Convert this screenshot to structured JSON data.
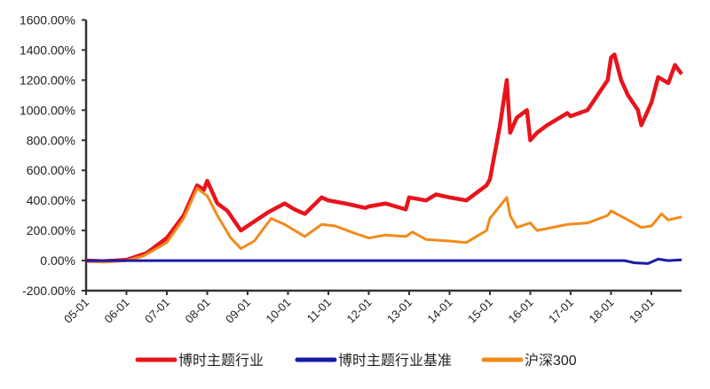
{
  "chart_data": {
    "type": "line",
    "title": "",
    "xlabel": "",
    "ylabel": "",
    "ylim": [
      -200,
      1600
    ],
    "yticks": [
      "-200.00%",
      "0.00%",
      "200.00%",
      "400.00%",
      "600.00%",
      "800.00%",
      "1000.00%",
      "1200.00%",
      "1400.00%",
      "1600.00%"
    ],
    "ytick_values": [
      -200,
      0,
      200,
      400,
      600,
      800,
      1000,
      1200,
      1400,
      1600
    ],
    "xticks": [
      "05-01",
      "06-01",
      "07-01",
      "08-01",
      "09-01",
      "10-01",
      "11-01",
      "12-01",
      "13-01",
      "14-01",
      "15-01",
      "16-01",
      "17-01",
      "18-01",
      "19-01"
    ],
    "xlim": [
      "2005-01",
      "2019-10"
    ],
    "grid": false,
    "legend": "bottom",
    "series": [
      {
        "name": "博时主题行业",
        "color": "#e8141c",
        "points": [
          [
            "2005-01",
            0
          ],
          [
            "2005-06",
            -5
          ],
          [
            "2006-01",
            5
          ],
          [
            "2006-07",
            50
          ],
          [
            "2007-01",
            150
          ],
          [
            "2007-06",
            300
          ],
          [
            "2007-10",
            500
          ],
          [
            "2007-12",
            470
          ],
          [
            "2008-01",
            530
          ],
          [
            "2008-04",
            380
          ],
          [
            "2008-07",
            330
          ],
          [
            "2008-11",
            200
          ],
          [
            "2009-01",
            230
          ],
          [
            "2009-07",
            320
          ],
          [
            "2009-12",
            380
          ],
          [
            "2010-03",
            340
          ],
          [
            "2010-06",
            310
          ],
          [
            "2010-11",
            420
          ],
          [
            "2011-01",
            400
          ],
          [
            "2011-06",
            380
          ],
          [
            "2011-12",
            350
          ],
          [
            "2012-01",
            360
          ],
          [
            "2012-06",
            380
          ],
          [
            "2012-12",
            340
          ],
          [
            "2013-01",
            420
          ],
          [
            "2013-06",
            400
          ],
          [
            "2013-09",
            440
          ],
          [
            "2014-01",
            420
          ],
          [
            "2014-06",
            400
          ],
          [
            "2014-12",
            500
          ],
          [
            "2015-01",
            540
          ],
          [
            "2015-04",
            900
          ],
          [
            "2015-06",
            1200
          ],
          [
            "2015-07",
            850
          ],
          [
            "2015-09",
            950
          ],
          [
            "2015-12",
            1000
          ],
          [
            "2016-01",
            800
          ],
          [
            "2016-03",
            850
          ],
          [
            "2016-06",
            900
          ],
          [
            "2016-12",
            980
          ],
          [
            "2017-01",
            960
          ],
          [
            "2017-06",
            1000
          ],
          [
            "2017-12",
            1200
          ],
          [
            "2018-01",
            1350
          ],
          [
            "2018-02",
            1370
          ],
          [
            "2018-04",
            1200
          ],
          [
            "2018-06",
            1100
          ],
          [
            "2018-09",
            1000
          ],
          [
            "2018-10",
            900
          ],
          [
            "2019-01",
            1050
          ],
          [
            "2019-03",
            1220
          ],
          [
            "2019-06",
            1180
          ],
          [
            "2019-08",
            1300
          ],
          [
            "2019-10",
            1240
          ]
        ]
      },
      {
        "name": "博时主题行业基准",
        "color": "#1a1aa6",
        "points": [
          [
            "2005-01",
            0
          ],
          [
            "2018-05",
            0
          ],
          [
            "2018-08",
            -15
          ],
          [
            "2018-12",
            -20
          ],
          [
            "2019-03",
            10
          ],
          [
            "2019-06",
            0
          ],
          [
            "2019-10",
            5
          ]
        ]
      },
      {
        "name": "沪深300",
        "color": "#f28a1a",
        "points": [
          [
            "2005-01",
            0
          ],
          [
            "2005-06",
            -10
          ],
          [
            "2006-01",
            0
          ],
          [
            "2006-06",
            30
          ],
          [
            "2007-01",
            120
          ],
          [
            "2007-06",
            280
          ],
          [
            "2007-10",
            480
          ],
          [
            "2008-01",
            430
          ],
          [
            "2008-04",
            300
          ],
          [
            "2008-08",
            150
          ],
          [
            "2008-11",
            80
          ],
          [
            "2009-03",
            130
          ],
          [
            "2009-08",
            280
          ],
          [
            "2009-12",
            240
          ],
          [
            "2010-06",
            160
          ],
          [
            "2010-11",
            240
          ],
          [
            "2011-03",
            230
          ],
          [
            "2011-09",
            180
          ],
          [
            "2012-01",
            150
          ],
          [
            "2012-06",
            170
          ],
          [
            "2012-12",
            160
          ],
          [
            "2013-02",
            190
          ],
          [
            "2013-06",
            140
          ],
          [
            "2014-01",
            130
          ],
          [
            "2014-06",
            120
          ],
          [
            "2014-12",
            200
          ],
          [
            "2015-01",
            280
          ],
          [
            "2015-06",
            420
          ],
          [
            "2015-07",
            300
          ],
          [
            "2015-09",
            220
          ],
          [
            "2016-01",
            250
          ],
          [
            "2016-03",
            200
          ],
          [
            "2016-12",
            240
          ],
          [
            "2017-06",
            250
          ],
          [
            "2017-12",
            300
          ],
          [
            "2018-01",
            330
          ],
          [
            "2018-06",
            270
          ],
          [
            "2018-10",
            220
          ],
          [
            "2019-01",
            230
          ],
          [
            "2019-04",
            310
          ],
          [
            "2019-06",
            270
          ],
          [
            "2019-10",
            290
          ]
        ]
      }
    ]
  }
}
